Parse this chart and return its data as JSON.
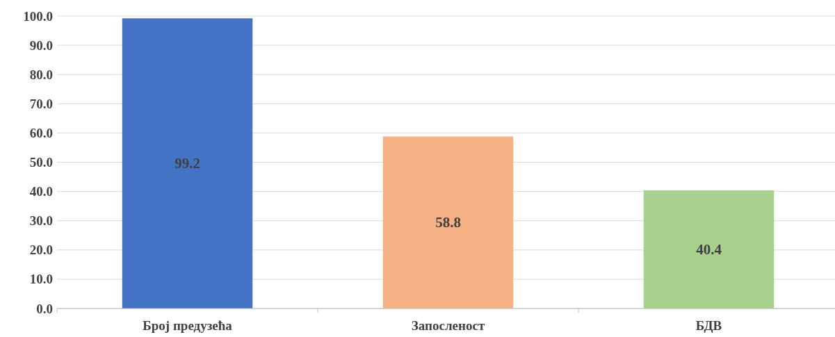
{
  "chart_data": {
    "type": "bar",
    "categories": [
      "Број предузећа",
      "Запосленост",
      "БДВ"
    ],
    "values": [
      99.2,
      58.8,
      40.4
    ],
    "colors": [
      "#4472c4",
      "#f4b183",
      "#a9d18e"
    ],
    "ylim": [
      0,
      100
    ],
    "yticks": [
      {
        "value": 0,
        "label": "0.0"
      },
      {
        "value": 10,
        "label": "10.0"
      },
      {
        "value": 20,
        "label": "20.0"
      },
      {
        "value": 30,
        "label": "30.0"
      },
      {
        "value": 40,
        "label": "40.0"
      },
      {
        "value": 50,
        "label": "50.0"
      },
      {
        "value": 60,
        "label": "60.0"
      },
      {
        "value": 70,
        "label": "70.0"
      },
      {
        "value": 80,
        "label": "80.0"
      },
      {
        "value": 90,
        "label": "90.0"
      },
      {
        "value": 100,
        "label": "100.0"
      }
    ],
    "grid": "y",
    "data_labels": true
  }
}
